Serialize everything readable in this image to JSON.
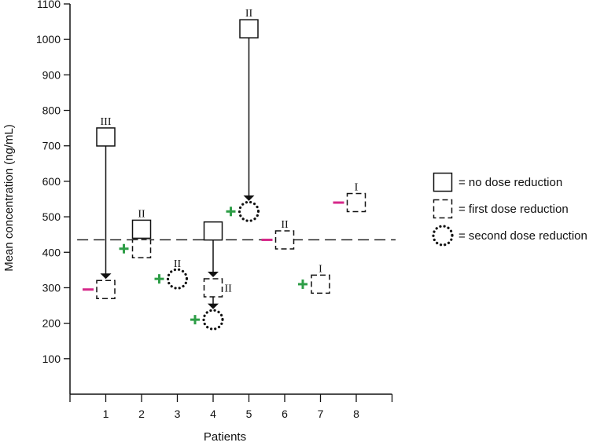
{
  "chart_data": {
    "type": "scatter",
    "xlabel": "Patients",
    "ylabel": "Mean concentration (ng/mL)",
    "ylim": [
      0,
      1100
    ],
    "xlim": [
      0,
      9
    ],
    "yticks": [
      100,
      200,
      300,
      400,
      500,
      600,
      700,
      800,
      900,
      1000,
      1100
    ],
    "xticks": [
      1,
      2,
      3,
      4,
      5,
      6,
      7,
      8
    ],
    "threshold": 435,
    "grid": false,
    "legend_position": "right",
    "legend": [
      {
        "marker": "solid-square",
        "label": "= no dose reduction"
      },
      {
        "marker": "dashed-square",
        "label": "= first dose reduction"
      },
      {
        "marker": "dotted-circle",
        "label": "= second dose reduction"
      }
    ],
    "colors": {
      "plus": "#2e9e47",
      "minus": "#d6288a"
    },
    "points": [
      {
        "x": 1,
        "y": 725,
        "marker": "solid-square",
        "grade": "III"
      },
      {
        "x": 1,
        "y": 295,
        "marker": "dashed-square",
        "sign": "−"
      },
      {
        "x": 2,
        "y": 465,
        "marker": "solid-square",
        "grade": "II"
      },
      {
        "x": 2,
        "y": 410,
        "marker": "dashed-square",
        "sign": "+"
      },
      {
        "x": 3,
        "y": 325,
        "marker": "dotted-circle",
        "grade": "II",
        "sign": "+"
      },
      {
        "x": 4,
        "y": 460,
        "marker": "solid-square"
      },
      {
        "x": 4,
        "y": 300,
        "marker": "dashed-square",
        "grade": "II"
      },
      {
        "x": 4,
        "y": 210,
        "marker": "dotted-circle",
        "sign": "+"
      },
      {
        "x": 5,
        "y": 1030,
        "marker": "solid-square",
        "grade": "II"
      },
      {
        "x": 5,
        "y": 515,
        "marker": "dotted-circle",
        "sign": "+"
      },
      {
        "x": 6,
        "y": 435,
        "marker": "dashed-square",
        "grade": "II",
        "sign": "−"
      },
      {
        "x": 7,
        "y": 310,
        "marker": "dashed-square",
        "grade": "I",
        "sign": "+"
      },
      {
        "x": 8,
        "y": 540,
        "marker": "dashed-square",
        "grade": "I",
        "sign": "−"
      }
    ],
    "arrows": [
      {
        "x": 1,
        "from": 725,
        "to": 295
      },
      {
        "x": 4,
        "from": 460,
        "to": 300
      },
      {
        "x": 4,
        "from": 300,
        "to": 210
      },
      {
        "x": 5,
        "from": 1030,
        "to": 515
      }
    ]
  }
}
